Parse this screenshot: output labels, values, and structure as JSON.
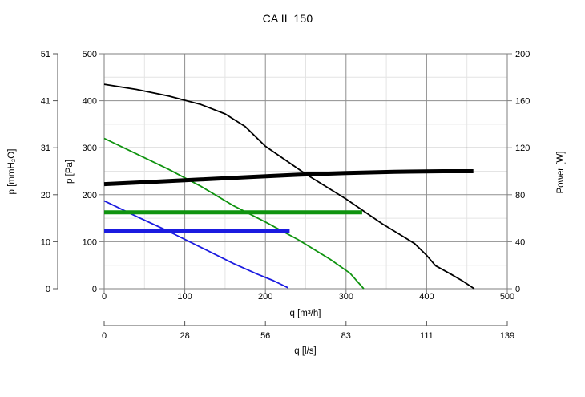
{
  "chart_data": {
    "type": "line",
    "title": "CA IL 150",
    "axes": {
      "x_bottom": {
        "label": "q [m³/h]",
        "range": [
          0,
          500
        ],
        "ticks": [
          "0",
          "100",
          "200",
          "300",
          "400",
          "500"
        ]
      },
      "x_bottom2": {
        "label": "q [l/s]",
        "range": [
          0,
          139
        ],
        "ticks": [
          "0",
          "28",
          "56",
          "83",
          "111",
          "139"
        ]
      },
      "y_left": {
        "label": "p [Pa]",
        "range": [
          0,
          500
        ],
        "ticks": [
          "0",
          "100",
          "200",
          "300",
          "400",
          "500"
        ]
      },
      "y_left2": {
        "label": "p [mmH₂O]",
        "range": [
          0,
          51
        ],
        "ticks": [
          "0",
          "10",
          "20",
          "31",
          "41",
          "51"
        ]
      },
      "y_right": {
        "label": "Power [W]",
        "range": [
          0,
          200
        ],
        "ticks": [
          "0",
          "40",
          "80",
          "120",
          "160",
          "200"
        ]
      }
    },
    "grid": {
      "on": true,
      "x_major": [
        100,
        200,
        300,
        400
      ],
      "x_minor": [
        50,
        150,
        250,
        350,
        450
      ],
      "y_major_pa": [
        100,
        200,
        300,
        400
      ],
      "y_minor_pa": [
        50,
        150,
        250,
        350,
        450
      ]
    },
    "legend": "none",
    "colors": {
      "frame": "#7f7f7f",
      "grid_major": "#8f8f8f",
      "grid_minor": "#e4e4e4",
      "outer_axis": "#555555",
      "tick": "#7f7f7f",
      "text": "#000000",
      "speed_high": "#000000",
      "speed_mid": "#0f930f",
      "speed_low": "#1b1be0"
    },
    "series": [
      {
        "name": "pressure-curve-high-speed",
        "unit": "Pa",
        "color": "#000000",
        "width": 1.8,
        "points": [
          [
            0,
            435
          ],
          [
            40,
            424
          ],
          [
            80,
            410
          ],
          [
            120,
            392
          ],
          [
            150,
            372
          ],
          [
            175,
            345
          ],
          [
            200,
            303
          ],
          [
            250,
            244
          ],
          [
            300,
            191
          ],
          [
            345,
            138
          ],
          [
            370,
            112
          ],
          [
            385,
            96
          ],
          [
            400,
            71
          ],
          [
            411,
            49
          ],
          [
            430,
            31
          ],
          [
            445,
            16
          ],
          [
            459,
            0
          ]
        ]
      },
      {
        "name": "pressure-curve-mid-speed",
        "unit": "Pa",
        "color": "#0f930f",
        "width": 1.8,
        "points": [
          [
            0,
            320
          ],
          [
            40,
            287
          ],
          [
            80,
            254
          ],
          [
            120,
            218
          ],
          [
            160,
            177
          ],
          [
            200,
            142
          ],
          [
            240,
            105
          ],
          [
            280,
            63
          ],
          [
            305,
            33
          ],
          [
            322,
            0
          ]
        ]
      },
      {
        "name": "pressure-curve-low-speed",
        "unit": "Pa",
        "color": "#1b1be0",
        "width": 1.8,
        "points": [
          [
            0,
            187
          ],
          [
            40,
            154
          ],
          [
            80,
            122
          ],
          [
            120,
            88
          ],
          [
            160,
            54
          ],
          [
            190,
            31
          ],
          [
            210,
            17
          ],
          [
            228,
            2
          ]
        ]
      },
      {
        "name": "power-curve-high-speed",
        "unit": "W",
        "color": "#000000",
        "width": 5,
        "points": [
          [
            0,
            89
          ],
          [
            60,
            91
          ],
          [
            120,
            93
          ],
          [
            180,
            95
          ],
          [
            240,
            97
          ],
          [
            300,
            98.5
          ],
          [
            360,
            99.5
          ],
          [
            420,
            100
          ],
          [
            458,
            100
          ]
        ]
      },
      {
        "name": "power-curve-mid-speed",
        "unit": "W",
        "color": "#0f930f",
        "width": 5,
        "points": [
          [
            0,
            65
          ],
          [
            320,
            65
          ]
        ]
      },
      {
        "name": "power-curve-low-speed",
        "unit": "W",
        "color": "#1b1be0",
        "width": 5,
        "points": [
          [
            0,
            49.5
          ],
          [
            230,
            49.5
          ]
        ]
      }
    ]
  }
}
